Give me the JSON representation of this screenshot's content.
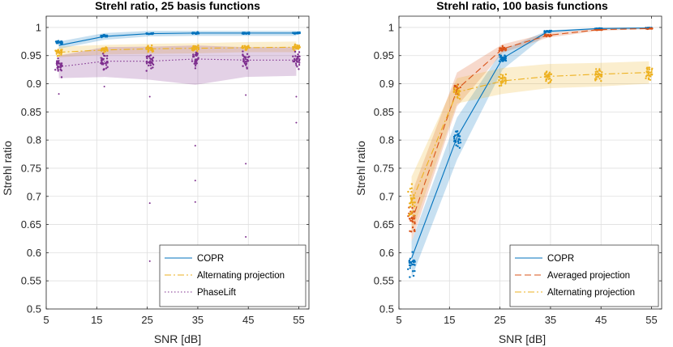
{
  "chart_data": [
    {
      "type": "line",
      "title": "Strehl ratio, 25 basis functions",
      "xlabel": "SNR [dB]",
      "ylabel": "Strehl ratio",
      "xlim": [
        5,
        57
      ],
      "ylim": [
        0.5,
        1.02
      ],
      "xticks": [
        5,
        15,
        25,
        35,
        45,
        55
      ],
      "yticks": [
        0.5,
        0.55,
        0.6,
        0.65,
        0.7,
        0.75,
        0.8,
        0.85,
        0.9,
        0.95,
        1
      ],
      "ytick_labels": [
        "0.5",
        "0.55",
        "0.6",
        "0.65",
        "0.7",
        "0.75",
        "0.8",
        "0.85",
        "0.9",
        "0.95",
        "1"
      ],
      "grid": true,
      "legend_position": "bottom-right",
      "series": [
        {
          "name": "COPR",
          "color": "#0072BD",
          "style": "solid",
          "x": [
            7.5,
            16.5,
            25.5,
            34.5,
            44.5,
            54.5
          ],
          "mean": [
            0.968,
            0.984,
            0.989,
            0.99,
            0.99,
            0.99
          ],
          "band_low": [
            0.962,
            0.978,
            0.984,
            0.985,
            0.985,
            0.985
          ],
          "band_high": [
            0.975,
            0.99,
            0.994,
            0.994,
            0.994,
            0.994
          ],
          "scatter_center": [
            0.973,
            0.985,
            0.989,
            0.99,
            0.99,
            0.99
          ],
          "scatter_spread": [
            0.004,
            0.003,
            0.002,
            0.002,
            0.002,
            0.002
          ]
        },
        {
          "name": "Alternating projection",
          "color": "#EDB120",
          "style": "dashdot",
          "x": [
            7.5,
            16.5,
            25.5,
            34.5,
            44.5,
            54.5
          ],
          "mean": [
            0.956,
            0.96,
            0.962,
            0.963,
            0.964,
            0.965
          ],
          "band_low": [
            0.947,
            0.952,
            0.953,
            0.954,
            0.956,
            0.956
          ],
          "band_high": [
            0.966,
            0.969,
            0.971,
            0.972,
            0.974,
            0.975
          ],
          "scatter_center": [
            0.956,
            0.96,
            0.962,
            0.963,
            0.964,
            0.965
          ],
          "scatter_spread": [
            0.009,
            0.007,
            0.007,
            0.007,
            0.007,
            0.007
          ]
        },
        {
          "name": "PhaseLift",
          "color": "#7E2F8E",
          "style": "dotted",
          "x": [
            7.5,
            16.5,
            25.5,
            34.5,
            44.5,
            54.5
          ],
          "mean": [
            0.93,
            0.94,
            0.94,
            0.944,
            0.942,
            0.942
          ],
          "band_low": [
            0.91,
            0.912,
            0.907,
            0.898,
            0.912,
            0.914
          ],
          "band_high": [
            0.95,
            0.965,
            0.966,
            0.968,
            0.965,
            0.965
          ],
          "scatter_center": [
            0.93,
            0.94,
            0.94,
            0.944,
            0.942,
            0.942
          ],
          "scatter_spread": [
            0.022,
            0.022,
            0.022,
            0.022,
            0.022,
            0.022
          ]
        }
      ],
      "outliers": [
        {
          "x": 7.5,
          "y": 0.882
        },
        {
          "x": 16.5,
          "y": 0.895
        },
        {
          "x": 25.5,
          "y": 0.877
        },
        {
          "x": 25.5,
          "y": 0.688
        },
        {
          "x": 25.5,
          "y": 0.585
        },
        {
          "x": 34.5,
          "y": 0.79
        },
        {
          "x": 34.5,
          "y": 0.728
        },
        {
          "x": 34.5,
          "y": 0.69
        },
        {
          "x": 44.5,
          "y": 0.88
        },
        {
          "x": 44.5,
          "y": 0.758
        },
        {
          "x": 44.5,
          "y": 0.628
        },
        {
          "x": 54.5,
          "y": 0.877
        },
        {
          "x": 54.5,
          "y": 0.831
        }
      ]
    },
    {
      "type": "line",
      "title": "Strehl ratio, 100 basis functions",
      "xlabel": "SNR [dB]",
      "ylabel": "Strehl ratio",
      "xlim": [
        5,
        57
      ],
      "ylim": [
        0.5,
        1.02
      ],
      "xticks": [
        5,
        15,
        25,
        35,
        45,
        55
      ],
      "yticks": [
        0.5,
        0.55,
        0.6,
        0.65,
        0.7,
        0.75,
        0.8,
        0.85,
        0.9,
        0.95,
        1
      ],
      "ytick_labels": [
        "0.5",
        "0.55",
        "0.6",
        "0.65",
        "0.7",
        "0.75",
        "0.8",
        "0.85",
        "0.9",
        "0.95",
        "1"
      ],
      "grid": true,
      "legend_position": "bottom-right",
      "series": [
        {
          "name": "COPR",
          "color": "#0072BD",
          "style": "solid",
          "x": [
            7.5,
            16.5,
            25.5,
            34.5,
            44.5,
            54.5
          ],
          "mean": [
            0.59,
            0.805,
            0.945,
            0.993,
            0.998,
            0.999
          ],
          "band_low": [
            0.555,
            0.765,
            0.925,
            0.99,
            0.997,
            0.998
          ],
          "band_high": [
            0.62,
            0.84,
            0.96,
            0.995,
            0.999,
            1.0
          ],
          "scatter_center": [
            0.58,
            0.805,
            0.945,
            0.993,
            0.998,
            0.999
          ],
          "scatter_spread": [
            0.035,
            0.025,
            0.01,
            0.002,
            0.001,
            0.001
          ]
        },
        {
          "name": "Averaged projection",
          "color": "#D95319",
          "style": "dashed",
          "x": [
            7.5,
            16.5,
            25.5,
            34.5,
            44.5,
            54.5
          ],
          "mean": [
            0.655,
            0.89,
            0.962,
            0.986,
            0.996,
            0.998
          ],
          "band_low": [
            0.62,
            0.86,
            0.955,
            0.982,
            0.994,
            0.997
          ],
          "band_high": [
            0.705,
            0.92,
            0.97,
            0.99,
            0.998,
            0.999
          ],
          "scatter_center": [
            0.66,
            0.89,
            0.962,
            0.986,
            0.996,
            0.998
          ],
          "scatter_spread": [
            0.03,
            0.015,
            0.006,
            0.003,
            0.001,
            0.001
          ]
        },
        {
          "name": "Alternating projection",
          "color": "#EDB120",
          "style": "dashdot",
          "x": [
            7.5,
            16.5,
            25.5,
            34.5,
            44.5,
            54.5
          ],
          "mean": [
            0.69,
            0.885,
            0.905,
            0.913,
            0.917,
            0.92
          ],
          "band_low": [
            0.635,
            0.865,
            0.882,
            0.892,
            0.895,
            0.9
          ],
          "band_high": [
            0.735,
            0.91,
            0.928,
            0.935,
            0.937,
            0.94
          ],
          "scatter_center": [
            0.69,
            0.885,
            0.908,
            0.913,
            0.917,
            0.92
          ],
          "scatter_spread": [
            0.04,
            0.018,
            0.017,
            0.017,
            0.017,
            0.017
          ]
        }
      ],
      "outliers": []
    }
  ]
}
